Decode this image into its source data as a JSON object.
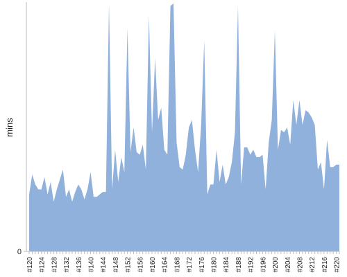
{
  "chart_data": {
    "type": "area",
    "y_label": "mins",
    "color": "#8fb1dc",
    "categories": [
      "#120",
      null,
      null,
      null,
      "#124",
      null,
      null,
      null,
      "#128",
      null,
      null,
      null,
      "#132",
      null,
      null,
      null,
      "#136",
      null,
      null,
      null,
      "#140",
      null,
      null,
      null,
      "#144",
      null,
      null,
      null,
      "#148",
      null,
      null,
      null,
      "#152",
      null,
      null,
      null,
      "#156",
      null,
      null,
      null,
      "#160",
      null,
      null,
      null,
      "#164",
      null,
      null,
      null,
      "#168",
      null,
      null,
      null,
      "#172",
      null,
      null,
      null,
      "#176",
      null,
      null,
      null,
      "#180",
      null,
      null,
      null,
      "#184",
      null,
      null,
      null,
      "#188",
      null,
      null,
      null,
      "#192",
      null,
      null,
      null,
      "#196",
      null,
      null,
      null,
      "#200",
      null,
      null,
      null,
      "#204",
      null,
      null,
      null,
      "#208",
      null,
      null,
      null,
      "#212",
      null,
      null,
      null,
      "#216",
      null,
      null,
      null,
      "#220",
      null
    ],
    "values": [
      23,
      31,
      27,
      25,
      25,
      30,
      23,
      28,
      20,
      25,
      29,
      33,
      22,
      25,
      20,
      24,
      27,
      25,
      21,
      25,
      32,
      22,
      22,
      23,
      24,
      24,
      100,
      25,
      41,
      28,
      38,
      32,
      90,
      40,
      50,
      40,
      39,
      43,
      33,
      95,
      48,
      78,
      53,
      58,
      41,
      39,
      99,
      100,
      44,
      34,
      33,
      39,
      50,
      53,
      41,
      32,
      51,
      85,
      23,
      27,
      27,
      41,
      28,
      35,
      27,
      30,
      36,
      48,
      99,
      27,
      42,
      42,
      39,
      41,
      38,
      38,
      39,
      25,
      44,
      53,
      89,
      41,
      49,
      48,
      50,
      43,
      61,
      51,
      61,
      51,
      57,
      56,
      54,
      51,
      33,
      36,
      25,
      45,
      34,
      34,
      35,
      35
    ],
    "ylim": [
      0,
      100
    ],
    "yticks": [
      0
    ]
  }
}
